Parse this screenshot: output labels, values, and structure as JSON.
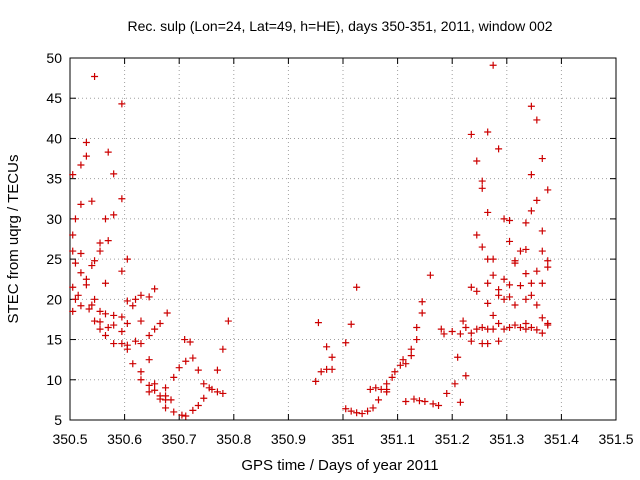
{
  "chart_data": {
    "type": "scatter",
    "title": "Rec. sulp (Lon=24, Lat=49, h=HE), days 350-351, 2011, window 002",
    "xlabel": "GPS time / Days of year 2011",
    "ylabel": "STEC from uqrg / TECUs",
    "xlim": [
      350.5,
      351.5
    ],
    "ylim": [
      5,
      50
    ],
    "x_ticks": [
      350.5,
      350.6,
      350.7,
      350.8,
      350.9,
      351,
      351.1,
      351.2,
      351.3,
      351.4,
      351.5
    ],
    "x_tick_labels": [
      "350.5",
      "350.6",
      "350.7",
      "350.8",
      "350.9",
      "351",
      "351.1",
      "351.2",
      "351.3",
      "351.4",
      "351.5"
    ],
    "y_ticks": [
      5,
      10,
      15,
      20,
      25,
      30,
      35,
      40,
      45,
      50
    ],
    "y_tick_labels": [
      "5",
      "10",
      "15",
      "20",
      "25",
      "30",
      "35",
      "40",
      "45",
      "50"
    ],
    "grid": true,
    "marker": "plus",
    "color": "#cc0000",
    "series": [
      {
        "name": "STEC",
        "points": [
          [
            350.505,
            35.5
          ],
          [
            350.51,
            30
          ],
          [
            350.505,
            28
          ],
          [
            350.505,
            26
          ],
          [
            350.51,
            24.5
          ],
          [
            350.505,
            21.5
          ],
          [
            350.51,
            20
          ],
          [
            350.505,
            18.5
          ],
          [
            350.52,
            36.7
          ],
          [
            350.52,
            31.8
          ],
          [
            350.52,
            25.7
          ],
          [
            350.52,
            23.3
          ],
          [
            350.515,
            20.5
          ],
          [
            350.52,
            19.2
          ],
          [
            350.53,
            39.5
          ],
          [
            350.53,
            37.8
          ],
          [
            350.53,
            22.5
          ],
          [
            350.53,
            21.8
          ],
          [
            350.535,
            18.8
          ],
          [
            350.545,
            47.7
          ],
          [
            350.54,
            32.2
          ],
          [
            350.545,
            24.8
          ],
          [
            350.54,
            24.2
          ],
          [
            350.545,
            20
          ],
          [
            350.54,
            19.3
          ],
          [
            350.545,
            17.3
          ],
          [
            350.555,
            27
          ],
          [
            350.555,
            26
          ],
          [
            350.555,
            18.5
          ],
          [
            350.555,
            17.2
          ],
          [
            350.555,
            16.3
          ],
          [
            350.57,
            38.3
          ],
          [
            350.565,
            30
          ],
          [
            350.57,
            27.3
          ],
          [
            350.565,
            22
          ],
          [
            350.565,
            18.2
          ],
          [
            350.57,
            16.5
          ],
          [
            350.565,
            15.5
          ],
          [
            350.58,
            35.6
          ],
          [
            350.58,
            30.5
          ],
          [
            350.58,
            18
          ],
          [
            350.58,
            16.8
          ],
          [
            350.58,
            14.5
          ],
          [
            350.595,
            44.3
          ],
          [
            350.595,
            32.5
          ],
          [
            350.595,
            23.5
          ],
          [
            350.595,
            17.8
          ],
          [
            350.595,
            16
          ],
          [
            350.595,
            14.5
          ],
          [
            350.605,
            25
          ],
          [
            350.605,
            19.8
          ],
          [
            350.605,
            17
          ],
          [
            350.605,
            14.3
          ],
          [
            350.605,
            13.8
          ],
          [
            350.62,
            20
          ],
          [
            350.615,
            19.2
          ],
          [
            350.62,
            14.8
          ],
          [
            350.615,
            12
          ],
          [
            350.63,
            20.5
          ],
          [
            350.63,
            17.3
          ],
          [
            350.63,
            14.5
          ],
          [
            350.63,
            11
          ],
          [
            350.63,
            10
          ],
          [
            350.645,
            20.3
          ],
          [
            350.645,
            15.5
          ],
          [
            350.645,
            12.5
          ],
          [
            350.645,
            9.3
          ],
          [
            350.645,
            8.5
          ],
          [
            350.655,
            21.3
          ],
          [
            350.655,
            16.3
          ],
          [
            350.655,
            9.5
          ],
          [
            350.655,
            8.7
          ],
          [
            350.665,
            17
          ],
          [
            350.665,
            8
          ],
          [
            350.665,
            7.6
          ],
          [
            350.678,
            18.3
          ],
          [
            350.675,
            9
          ],
          [
            350.675,
            8
          ],
          [
            350.675,
            7.5
          ],
          [
            350.675,
            6.5
          ],
          [
            350.69,
            10.3
          ],
          [
            350.685,
            7.5
          ],
          [
            350.69,
            6
          ],
          [
            350.7,
            11.5
          ],
          [
            350.705,
            5.6
          ],
          [
            350.71,
            15
          ],
          [
            350.712,
            12.3
          ],
          [
            350.712,
            5.5
          ],
          [
            350.72,
            14.7
          ],
          [
            350.725,
            12.7
          ],
          [
            350.725,
            6.2
          ],
          [
            350.735,
            11.2
          ],
          [
            350.735,
            6.8
          ],
          [
            350.745,
            9.5
          ],
          [
            350.745,
            7.7
          ],
          [
            350.755,
            9
          ],
          [
            350.76,
            8.8
          ],
          [
            350.77,
            11.2
          ],
          [
            350.77,
            8.5
          ],
          [
            350.78,
            13.8
          ],
          [
            350.78,
            8.3
          ],
          [
            350.79,
            17.3
          ],
          [
            350.95,
            9.8
          ],
          [
            350.955,
            17.1
          ],
          [
            350.96,
            11
          ],
          [
            350.97,
            14.1
          ],
          [
            350.97,
            11.3
          ],
          [
            350.98,
            12.8
          ],
          [
            350.98,
            11.3
          ],
          [
            351.005,
            14.6
          ],
          [
            351.005,
            6.4
          ],
          [
            351.015,
            16.9
          ],
          [
            351.015,
            6.1
          ],
          [
            351.025,
            21.5
          ],
          [
            351.025,
            5.9
          ],
          [
            351.035,
            5.8
          ],
          [
            351.045,
            6.1
          ],
          [
            351.05,
            8.8
          ],
          [
            351.055,
            6.5
          ],
          [
            351.06,
            9
          ],
          [
            351.065,
            7.5
          ],
          [
            351.07,
            8.8
          ],
          [
            351.08,
            9.5
          ],
          [
            351.08,
            8.8
          ],
          [
            351.08,
            8.5
          ],
          [
            351.09,
            10.3
          ],
          [
            351.095,
            11
          ],
          [
            351.105,
            11.8
          ],
          [
            351.11,
            12.5
          ],
          [
            351.115,
            12
          ],
          [
            351.115,
            7.3
          ],
          [
            351.125,
            13
          ],
          [
            351.125,
            13.8
          ],
          [
            351.13,
            7.6
          ],
          [
            351.135,
            16.5
          ],
          [
            351.135,
            15
          ],
          [
            351.14,
            7.4
          ],
          [
            351.145,
            19.7
          ],
          [
            351.145,
            18.3
          ],
          [
            351.15,
            7.3
          ],
          [
            351.16,
            23
          ],
          [
            351.165,
            7
          ],
          [
            351.175,
            6.8
          ],
          [
            351.18,
            16.3
          ],
          [
            351.185,
            15.7
          ],
          [
            351.19,
            8.3
          ],
          [
            351.2,
            16
          ],
          [
            351.205,
            9.5
          ],
          [
            351.21,
            12.8
          ],
          [
            351.215,
            15.7
          ],
          [
            351.215,
            7.2
          ],
          [
            351.22,
            17.3
          ],
          [
            351.225,
            16.5
          ],
          [
            351.225,
            10.5
          ],
          [
            351.235,
            40.5
          ],
          [
            351.235,
            21.5
          ],
          [
            351.235,
            15.8
          ],
          [
            351.235,
            14.8
          ],
          [
            351.245,
            37.2
          ],
          [
            351.245,
            28
          ],
          [
            351.245,
            21
          ],
          [
            351.245,
            16.3
          ],
          [
            351.255,
            34.7
          ],
          [
            351.255,
            33.8
          ],
          [
            351.255,
            26.5
          ],
          [
            351.255,
            16.5
          ],
          [
            351.255,
            14.5
          ],
          [
            351.265,
            40.8
          ],
          [
            351.265,
            30.8
          ],
          [
            351.265,
            25
          ],
          [
            351.265,
            22
          ],
          [
            351.265,
            19.5
          ],
          [
            351.265,
            16.3
          ],
          [
            351.265,
            14.5
          ],
          [
            351.275,
            49.1
          ],
          [
            351.275,
            25
          ],
          [
            351.275,
            23
          ],
          [
            351.275,
            18
          ],
          [
            351.275,
            16.3
          ],
          [
            351.285,
            38.7
          ],
          [
            351.285,
            21.2
          ],
          [
            351.285,
            20.5
          ],
          [
            351.285,
            17
          ],
          [
            351.285,
            14.8
          ],
          [
            351.295,
            30
          ],
          [
            351.295,
            22.5
          ],
          [
            351.295,
            20
          ],
          [
            351.295,
            16.3
          ],
          [
            351.305,
            29.8
          ],
          [
            351.305,
            27.2
          ],
          [
            351.305,
            21.8
          ],
          [
            351.305,
            20.3
          ],
          [
            351.305,
            16.5
          ],
          [
            351.315,
            24.5
          ],
          [
            351.315,
            24.8
          ],
          [
            351.315,
            19.3
          ],
          [
            351.315,
            16.8
          ],
          [
            351.325,
            26
          ],
          [
            351.325,
            21.7
          ],
          [
            351.325,
            16.5
          ],
          [
            351.335,
            29.5
          ],
          [
            351.335,
            26.2
          ],
          [
            351.335,
            23.2
          ],
          [
            351.335,
            20
          ],
          [
            351.335,
            17
          ],
          [
            351.335,
            16.3
          ],
          [
            351.345,
            44
          ],
          [
            351.345,
            35.5
          ],
          [
            351.345,
            31
          ],
          [
            351.345,
            22
          ],
          [
            351.345,
            20.5
          ],
          [
            351.345,
            16.5
          ],
          [
            351.355,
            42.3
          ],
          [
            351.355,
            32.3
          ],
          [
            351.355,
            23.5
          ],
          [
            351.355,
            19.3
          ],
          [
            351.355,
            16.2
          ],
          [
            351.365,
            37.5
          ],
          [
            351.365,
            28.5
          ],
          [
            351.365,
            26
          ],
          [
            351.365,
            22
          ],
          [
            351.365,
            17.7
          ],
          [
            351.365,
            15.8
          ],
          [
            351.375,
            33.6
          ],
          [
            351.375,
            24.8
          ],
          [
            351.375,
            24
          ],
          [
            351.375,
            17
          ],
          [
            351.375,
            16.8
          ]
        ]
      }
    ]
  }
}
